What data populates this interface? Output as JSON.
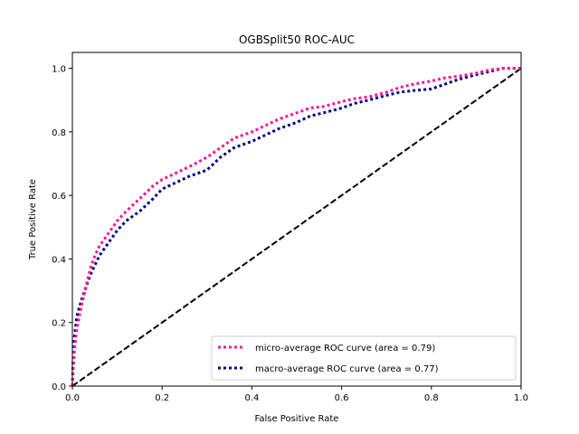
{
  "chart_data": {
    "type": "line",
    "title": "OGBSplit50 ROC-AUC",
    "xlabel": "False Positive Rate",
    "ylabel": "True Positive Rate",
    "xlim": [
      0.0,
      1.0
    ],
    "ylim": [
      0.0,
      1.05
    ],
    "xticks": [
      "0.0",
      "0.2",
      "0.4",
      "0.6",
      "0.8",
      "1.0"
    ],
    "yticks": [
      "0.0",
      "0.2",
      "0.4",
      "0.6",
      "0.8",
      "1.0"
    ],
    "grid": false,
    "legend_position": "lower-right",
    "series": [
      {
        "name": "micro-average ROC curve (area = 0.79)",
        "color": "#ff1493",
        "style": "dotted",
        "x": [
          0.0,
          0.002,
          0.005,
          0.01,
          0.02,
          0.03,
          0.04,
          0.05,
          0.06,
          0.08,
          0.1,
          0.12,
          0.15,
          0.18,
          0.2,
          0.23,
          0.26,
          0.3,
          0.33,
          0.36,
          0.4,
          0.43,
          0.46,
          0.5,
          0.53,
          0.56,
          0.6,
          0.63,
          0.66,
          0.7,
          0.73,
          0.76,
          0.8,
          0.83,
          0.86,
          0.9,
          0.93,
          0.96,
          1.0
        ],
        "y": [
          0.0,
          0.05,
          0.12,
          0.18,
          0.25,
          0.31,
          0.37,
          0.41,
          0.44,
          0.48,
          0.52,
          0.55,
          0.59,
          0.63,
          0.65,
          0.67,
          0.69,
          0.72,
          0.75,
          0.78,
          0.8,
          0.82,
          0.84,
          0.86,
          0.875,
          0.88,
          0.895,
          0.905,
          0.91,
          0.925,
          0.94,
          0.95,
          0.96,
          0.97,
          0.975,
          0.985,
          0.995,
          1.0,
          1.0
        ]
      },
      {
        "name": "macro-average ROC curve (area = 0.77)",
        "color": "#000080",
        "style": "dotted",
        "x": [
          0.0,
          0.002,
          0.005,
          0.01,
          0.02,
          0.03,
          0.04,
          0.05,
          0.06,
          0.08,
          0.1,
          0.12,
          0.15,
          0.18,
          0.2,
          0.23,
          0.26,
          0.3,
          0.33,
          0.36,
          0.4,
          0.43,
          0.46,
          0.5,
          0.53,
          0.56,
          0.6,
          0.63,
          0.66,
          0.7,
          0.73,
          0.76,
          0.8,
          0.83,
          0.86,
          0.9,
          0.93,
          0.96,
          1.0
        ],
        "y": [
          0.0,
          0.1,
          0.16,
          0.22,
          0.27,
          0.31,
          0.35,
          0.38,
          0.41,
          0.45,
          0.49,
          0.52,
          0.55,
          0.59,
          0.62,
          0.64,
          0.66,
          0.68,
          0.72,
          0.75,
          0.77,
          0.79,
          0.81,
          0.83,
          0.85,
          0.86,
          0.875,
          0.89,
          0.9,
          0.915,
          0.925,
          0.93,
          0.935,
          0.95,
          0.965,
          0.98,
          0.99,
          1.0,
          1.0
        ]
      },
      {
        "name": "",
        "color": "#000000",
        "style": "dashed",
        "x": [
          0.0,
          1.0
        ],
        "y": [
          0.0,
          1.0
        ]
      }
    ]
  }
}
